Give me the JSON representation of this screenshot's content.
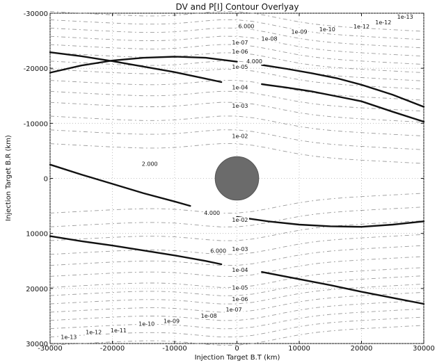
{
  "chart_data": {
    "type": "line",
    "title": "DV and P[I] Contour Overlyay",
    "xlabel": "Injection Target B.T (km)",
    "ylabel": "Injection Target B.R (km)",
    "xlim": [
      -30000,
      30000
    ],
    "ylim": [
      -30000,
      30000
    ],
    "y_inverted": true,
    "grid": true,
    "x_ticks": [
      -30000,
      -20000,
      -10000,
      0,
      10000,
      20000,
      30000
    ],
    "y_ticks": [
      -30000,
      -20000,
      -10000,
      0,
      10000,
      20000,
      30000
    ],
    "x_tick_labels": [
      "-30000",
      "-20000",
      "-10000",
      "0",
      "10000",
      "20000",
      "30000"
    ],
    "y_tick_labels": [
      "-30000",
      "-20000",
      "-10000",
      "0",
      "10000",
      "20000",
      "30000"
    ],
    "body": {
      "cx": 0,
      "cy": 0,
      "r": 3500,
      "color": "#6b6b6b"
    },
    "colors": {
      "dv_contour": "#111111",
      "prob_contour": "#9a9a9a",
      "grid": "#b0b0b0"
    },
    "dv_contours": [
      {
        "points": [
          [
            -30000,
            -19200
          ],
          [
            -25000,
            -20500
          ],
          [
            -20000,
            -21400
          ],
          [
            -15000,
            -21900
          ],
          [
            -10000,
            -22100
          ],
          [
            -5000,
            -21900
          ],
          [
            0,
            -21200
          ]
        ]
      },
      {
        "points": [
          [
            -30000,
            -22900
          ],
          [
            -25000,
            -22200
          ],
          [
            -20000,
            -21300
          ],
          [
            -15000,
            -20300
          ],
          [
            -10000,
            -19300
          ],
          [
            -5000,
            -18100
          ],
          [
            -2500,
            -17500
          ]
        ]
      },
      {
        "points": [
          [
            4000,
            -20600
          ],
          [
            8000,
            -19900
          ],
          [
            12000,
            -19100
          ],
          [
            16000,
            -18200
          ],
          [
            20000,
            -17000
          ],
          [
            25000,
            -15200
          ],
          [
            30000,
            -13000
          ]
        ]
      },
      {
        "points": [
          [
            4000,
            -17100
          ],
          [
            8000,
            -16500
          ],
          [
            12000,
            -15800
          ],
          [
            16000,
            -14900
          ],
          [
            20000,
            -14000
          ],
          [
            25000,
            -12100
          ],
          [
            30000,
            -10300
          ]
        ]
      },
      {
        "points": [
          [
            -30000,
            -2500
          ],
          [
            -25000,
            -700
          ],
          [
            -20000,
            1000
          ],
          [
            -15000,
            2700
          ],
          [
            -10000,
            4200
          ],
          [
            -7500,
            5000
          ]
        ]
      },
      {
        "points": [
          [
            0,
            7000
          ],
          [
            5000,
            7800
          ],
          [
            10000,
            8400
          ],
          [
            15000,
            8700
          ],
          [
            20000,
            8800
          ],
          [
            25000,
            8400
          ],
          [
            30000,
            7800
          ]
        ]
      },
      {
        "points": [
          [
            -30000,
            10500
          ],
          [
            -25000,
            11400
          ],
          [
            -20000,
            12200
          ],
          [
            -15000,
            13100
          ],
          [
            -10000,
            14000
          ],
          [
            -5000,
            15000
          ],
          [
            -2500,
            15600
          ]
        ]
      },
      {
        "points": [
          [
            4000,
            17000
          ],
          [
            10000,
            18300
          ],
          [
            15000,
            19400
          ],
          [
            20000,
            20600
          ],
          [
            25000,
            21700
          ],
          [
            30000,
            22800
          ]
        ]
      }
    ],
    "prob_contour_levels": [
      "1e-13",
      "1e-12",
      "1e-11",
      "1e-10",
      "1e-09",
      "1e-08",
      "1e-07",
      "1e-06",
      "1e-05",
      "1e-04",
      "1e-03",
      "1e-02"
    ],
    "contour_labels": [
      {
        "text": "6.000",
        "x": 1500,
        "y": -27300
      },
      {
        "text": "1e-07",
        "x": 500,
        "y": -24300
      },
      {
        "text": "1e-06",
        "x": 500,
        "y": -22700
      },
      {
        "text": "1e-05",
        "x": 500,
        "y": -19900
      },
      {
        "text": "4.000",
        "x": 2800,
        "y": -20900
      },
      {
        "text": "1e-08",
        "x": 5200,
        "y": -25000
      },
      {
        "text": "1e-09",
        "x": 10000,
        "y": -26300
      },
      {
        "text": "1e-10",
        "x": 14500,
        "y": -26700
      },
      {
        "text": "1e-12",
        "x": 20000,
        "y": -27200
      },
      {
        "text": "1e-12",
        "x": 23500,
        "y": -28000
      },
      {
        "text": "1e-13",
        "x": 27000,
        "y": -29000
      },
      {
        "text": "1e-04",
        "x": 500,
        "y": -16200
      },
      {
        "text": "1e-03",
        "x": 500,
        "y": -12800
      },
      {
        "text": "1e-02",
        "x": 500,
        "y": -7300
      },
      {
        "text": "2.000",
        "x": -14000,
        "y": -2300
      },
      {
        "text": "4.000",
        "x": -4000,
        "y": 6600
      },
      {
        "text": "1e-02",
        "x": 500,
        "y": 7900
      },
      {
        "text": "6.000",
        "x": -3000,
        "y": 13500
      },
      {
        "text": "1e-03",
        "x": 500,
        "y": 13200
      },
      {
        "text": "1e-04",
        "x": 500,
        "y": 17000
      },
      {
        "text": "1e-05",
        "x": 500,
        "y": 20200
      },
      {
        "text": "1e-06",
        "x": 500,
        "y": 22300
      },
      {
        "text": "1e-07",
        "x": -500,
        "y": 24200
      },
      {
        "text": "1e-08",
        "x": -4500,
        "y": 25300
      },
      {
        "text": "1e-09",
        "x": -10500,
        "y": 26300
      },
      {
        "text": "1e-10",
        "x": -14500,
        "y": 26800
      },
      {
        "text": "1e-11",
        "x": -19000,
        "y": 28000
      },
      {
        "text": "1e-12",
        "x": -23000,
        "y": 28300
      },
      {
        "text": "1e-13",
        "x": -27000,
        "y": 29200
      }
    ]
  }
}
